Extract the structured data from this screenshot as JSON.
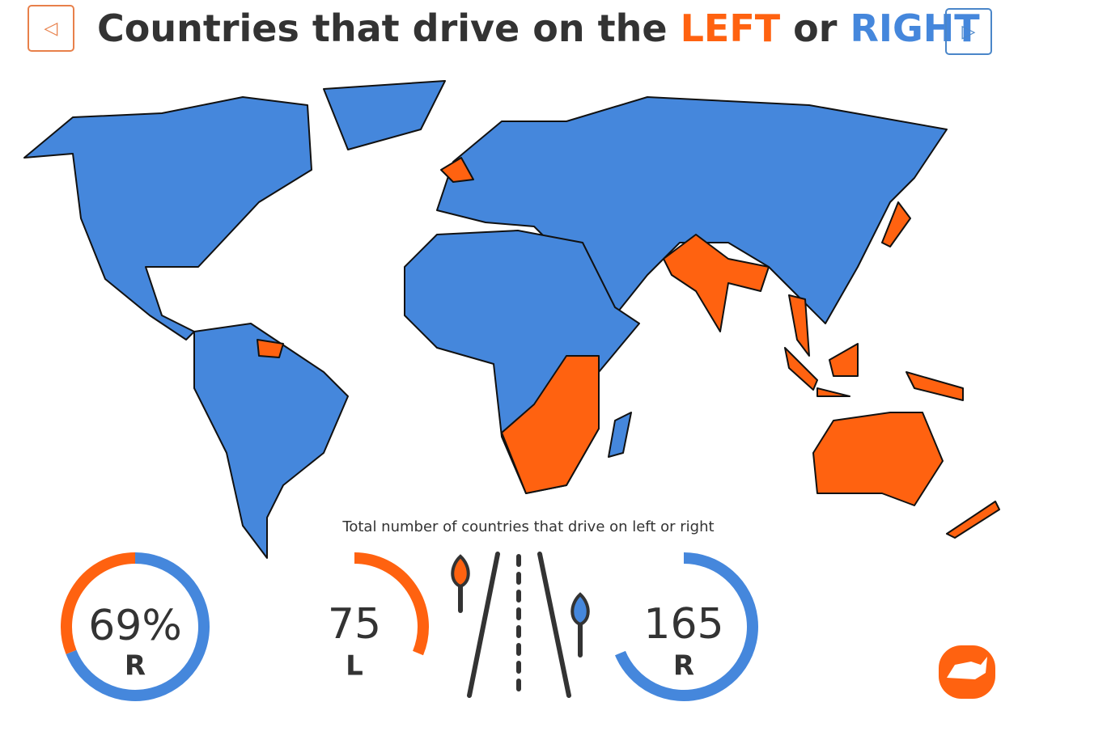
{
  "header": {
    "title_prefix": "Countries that drive on the",
    "title_left": "LEFT",
    "title_or": "or",
    "title_right": "RIGHT"
  },
  "colors": {
    "left": "#ff6210",
    "right": "#4587dc"
  },
  "stats": {
    "caption": "Total number of countries that drive on left or right",
    "share": {
      "value": 69,
      "label": "69%",
      "side": "R"
    },
    "left": {
      "value": 75,
      "side": "L"
    },
    "right": {
      "value": 165,
      "side": "R"
    }
  }
}
